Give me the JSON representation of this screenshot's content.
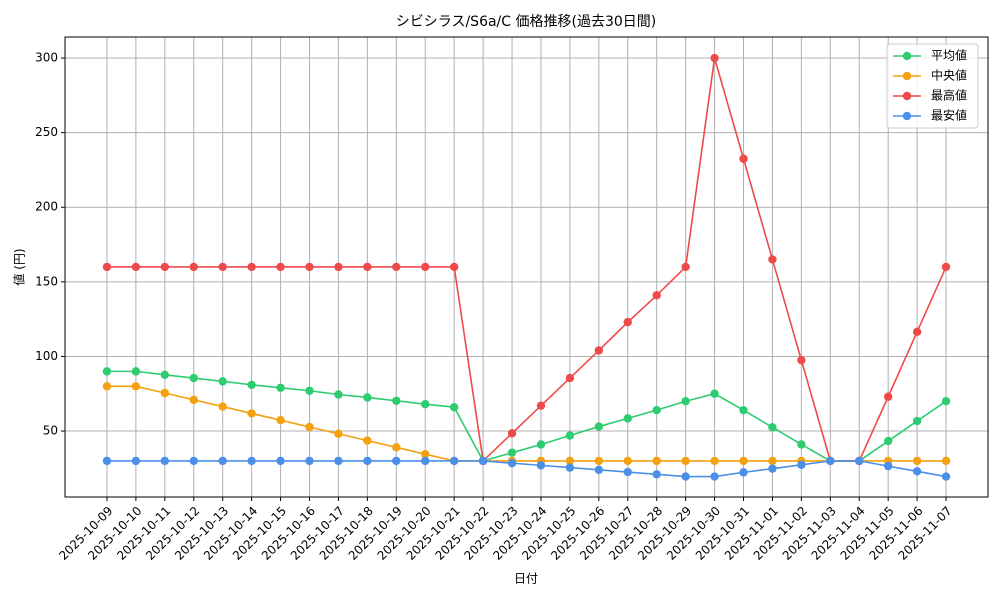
{
  "chart_data": {
    "type": "line",
    "title": "シビシラス/S6a/C 価格推移(過去30日間)",
    "x_label": "日付",
    "y_label": "値 (円)",
    "categories": [
      "2025-10-09",
      "2025-10-10",
      "2025-10-11",
      "2025-10-12",
      "2025-10-13",
      "2025-10-14",
      "2025-10-15",
      "2025-10-16",
      "2025-10-17",
      "2025-10-18",
      "2025-10-19",
      "2025-10-20",
      "2025-10-21",
      "2025-10-22",
      "2025-10-23",
      "2025-10-24",
      "2025-10-25",
      "2025-10-26",
      "2025-10-27",
      "2025-10-28",
      "2025-10-29",
      "2025-10-30",
      "2025-10-31",
      "2025-11-01",
      "2025-11-02",
      "2025-11-03",
      "2025-11-04",
      "2025-11-05",
      "2025-11-06",
      "2025-11-07"
    ],
    "series": [
      {
        "name": "平均値",
        "color": "#2ecc71",
        "values": [
          90,
          90,
          87.7,
          85.5,
          83.3,
          81,
          79,
          77,
          74.5,
          72.5,
          70.3,
          68,
          66,
          30,
          35.5,
          41,
          47,
          53,
          58.5,
          64,
          70,
          75,
          64,
          52.5,
          41,
          30,
          30,
          43.3,
          56.7,
          70
        ]
      },
      {
        "name": "中央値",
        "color": "#f5a00f",
        "values": [
          80,
          80,
          75.5,
          70.9,
          66.4,
          61.8,
          57.3,
          52.7,
          48.2,
          43.6,
          39.1,
          34.5,
          30,
          30,
          30,
          30,
          30,
          30,
          30,
          30,
          30,
          30,
          30,
          30,
          30,
          30,
          30,
          30,
          30,
          30
        ]
      },
      {
        "name": "最高値",
        "color": "#ef4a4a",
        "values": [
          160,
          160,
          160,
          160,
          160,
          160,
          160,
          160,
          160,
          160,
          160,
          160,
          160,
          30,
          48.5,
          67,
          85.5,
          104,
          123,
          141,
          160,
          300,
          232.5,
          165,
          97.5,
          30,
          30,
          73,
          116.5,
          160
        ]
      },
      {
        "name": "最安値",
        "color": "#4a90e8",
        "values": [
          30,
          30,
          30,
          30,
          30,
          30,
          30,
          30,
          30,
          30,
          30,
          30,
          30,
          30,
          28.5,
          27,
          25.5,
          24,
          22.5,
          21,
          19.5,
          19.5,
          22.3,
          24.8,
          27.4,
          30,
          30,
          26.5,
          23,
          19.5
        ]
      }
    ],
    "ylim": [
      5.8,
      314.1
    ],
    "yticks": [
      50,
      100,
      150,
      200,
      250,
      300
    ],
    "grid": true,
    "legend": "upper-right"
  }
}
